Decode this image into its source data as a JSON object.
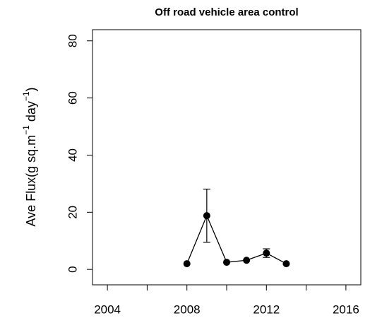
{
  "chart_data": {
    "type": "line",
    "title": "Off road vehicle area control",
    "ylabel_parts": [
      {
        "text": "Ave Flux(g sq.m"
      },
      {
        "text": "−1",
        "sup": true
      },
      {
        "text": " day"
      },
      {
        "text": "−1",
        "sup": true
      },
      {
        "text": ")"
      }
    ],
    "x": [
      2008,
      2009,
      2010,
      2011,
      2012,
      2013
    ],
    "series": [
      {
        "color": "#000000",
        "values": [
          2,
          18.8,
          2.5,
          3.2,
          5.7,
          2
        ],
        "errors": [
          null,
          9.3,
          null,
          null,
          1.5,
          null
        ]
      }
    ],
    "xlim": [
      2003.25,
      2016.75
    ],
    "xticks": [
      2004,
      2008,
      2012,
      2016
    ],
    "xminor_ticks": [
      2006,
      2010,
      2014
    ],
    "ylim": [
      -5.4,
      83.9
    ],
    "yticks": [
      0,
      20,
      40,
      60,
      80
    ]
  }
}
